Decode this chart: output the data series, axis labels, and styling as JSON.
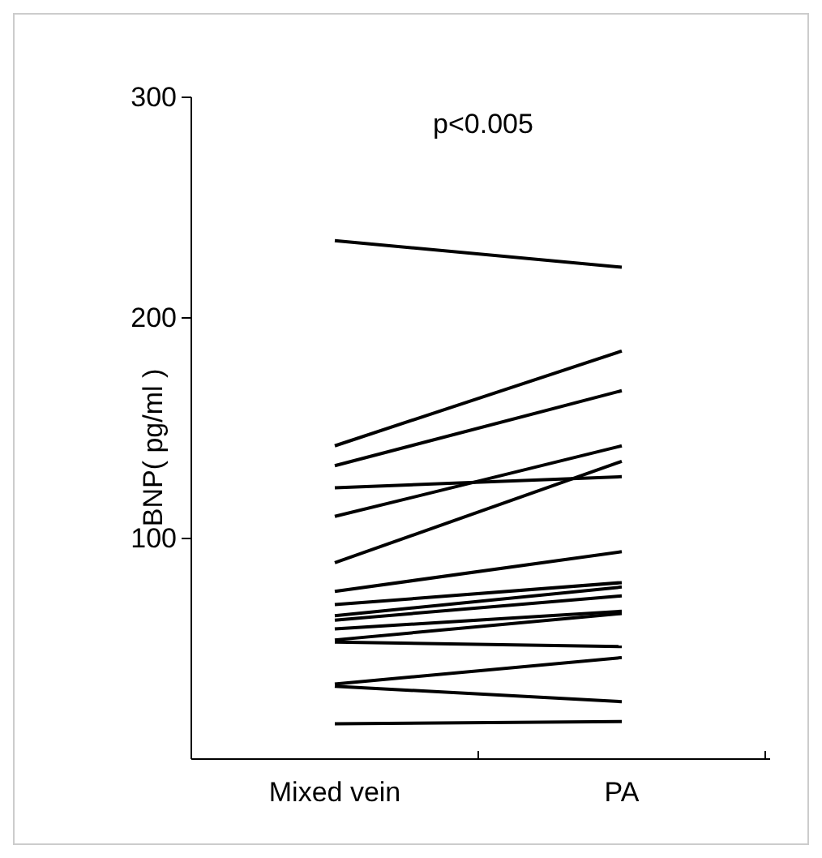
{
  "chart_data": {
    "type": "line",
    "ylabel": "BNP( pg/ml )",
    "annotations": [
      "p<0.005"
    ],
    "categories": [
      "Mixed vein",
      "PA"
    ],
    "ylim": [
      0,
      300
    ],
    "yticks": [
      100,
      200,
      300
    ],
    "grid": false,
    "marker": "none",
    "line_style": "solid",
    "series": [
      {
        "color": "#000000",
        "values": [
          235,
          223
        ]
      },
      {
        "color": "#000000",
        "values": [
          142,
          185
        ]
      },
      {
        "color": "#000000",
        "values": [
          133,
          167
        ]
      },
      {
        "color": "#000000",
        "values": [
          123,
          128
        ]
      },
      {
        "color": "#000000",
        "values": [
          110,
          142
        ]
      },
      {
        "color": "#000000",
        "values": [
          89,
          135
        ]
      },
      {
        "color": "#000000",
        "values": [
          76,
          94
        ]
      },
      {
        "color": "#000000",
        "values": [
          70,
          80
        ]
      },
      {
        "color": "#000000",
        "values": [
          65,
          78
        ]
      },
      {
        "color": "#000000",
        "values": [
          63,
          74
        ]
      },
      {
        "color": "#000000",
        "values": [
          59,
          67
        ]
      },
      {
        "color": "#000000",
        "values": [
          54,
          66
        ]
      },
      {
        "color": "#000000",
        "values": [
          53,
          51
        ]
      },
      {
        "color": "#000000",
        "values": [
          34,
          46
        ]
      },
      {
        "color": "#000000",
        "values": [
          33,
          26
        ]
      },
      {
        "color": "#000000",
        "values": [
          16,
          17
        ]
      }
    ]
  }
}
